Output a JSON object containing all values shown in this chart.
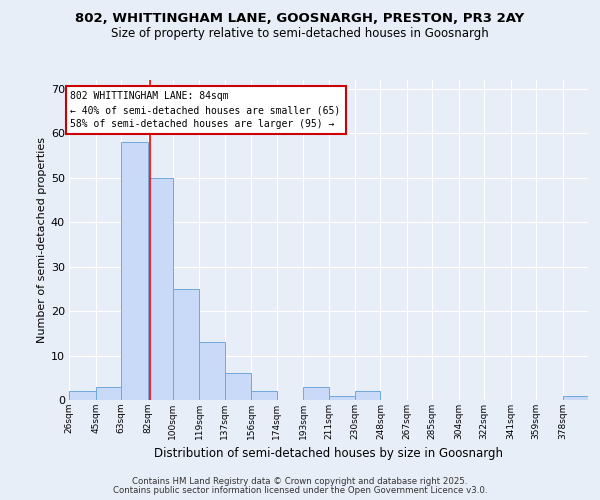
{
  "title1": "802, WHITTINGHAM LANE, GOOSNARGH, PRESTON, PR3 2AY",
  "title2": "Size of property relative to semi-detached houses in Goosnargh",
  "xlabel": "Distribution of semi-detached houses by size in Goosnargh",
  "ylabel": "Number of semi-detached properties",
  "bin_edges": [
    26,
    45,
    63,
    82,
    100,
    119,
    137,
    156,
    174,
    193,
    211,
    230,
    248,
    267,
    285,
    304,
    322,
    341,
    359,
    378,
    396
  ],
  "bar_heights": [
    2,
    3,
    58,
    50,
    25,
    13,
    6,
    2,
    0,
    3,
    1,
    2,
    0,
    0,
    0,
    0,
    0,
    0,
    0,
    1
  ],
  "bar_color": "#c9daf8",
  "bar_edge_color": "#6fa8dc",
  "red_line_x": 84,
  "ylim": [
    0,
    72
  ],
  "yticks": [
    0,
    10,
    20,
    30,
    40,
    50,
    60,
    70
  ],
  "annotation_title": "802 WHITTINGHAM LANE: 84sqm",
  "annotation_line1": "← 40% of semi-detached houses are smaller (65)",
  "annotation_line2": "58% of semi-detached houses are larger (95) →",
  "footer1": "Contains HM Land Registry data © Crown copyright and database right 2025.",
  "footer2": "Contains public sector information licensed under the Open Government Licence v3.0.",
  "bg_color": "#e8eef8",
  "plot_bg_color": "#e8eef8",
  "grid_color": "#ffffff"
}
